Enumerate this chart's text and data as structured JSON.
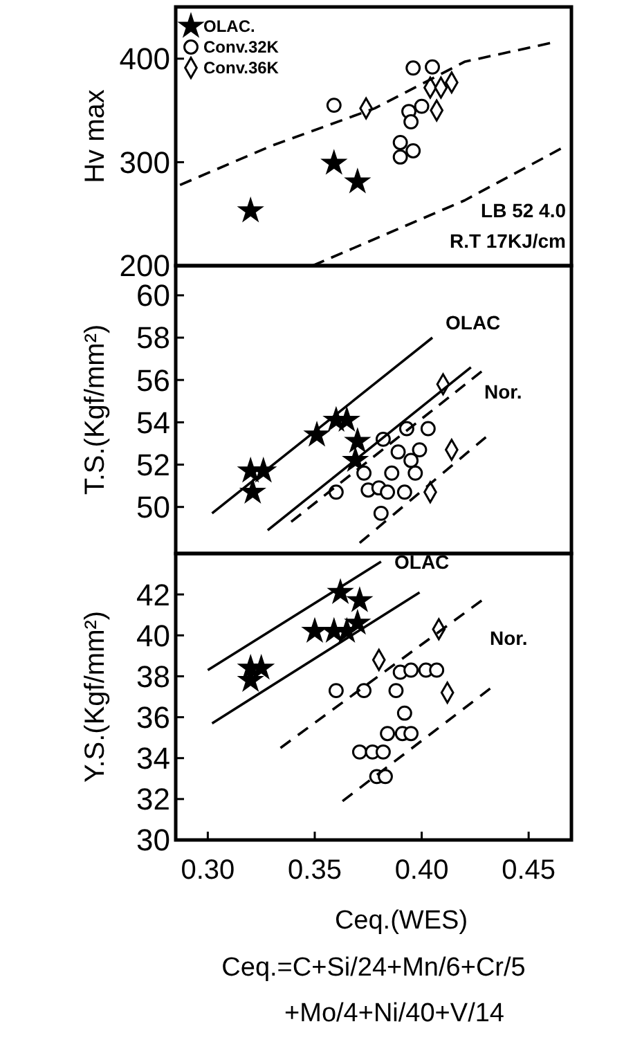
{
  "chart_data": [
    {
      "type": "scatter",
      "ylabel": "Hv max",
      "xlim": [
        0.285,
        0.47
      ],
      "ylim": [
        200,
        450
      ],
      "yticks": [
        200,
        300,
        400
      ],
      "tick_labels": "y",
      "legend": "top left",
      "annotations": [
        "LB 52 4.0",
        "R.T 17KJ/cm"
      ],
      "series": [
        {
          "name": "OLAC.",
          "color": "#000000",
          "marker": "star",
          "x": [
            0.32,
            0.359,
            0.37
          ],
          "values": [
            253,
            299,
            281
          ]
        },
        {
          "name": "Conv.32K",
          "color": "#000000",
          "marker": "circle",
          "x": [
            0.359,
            0.396,
            0.405,
            0.394,
            0.4,
            0.395,
            0.39,
            0.396,
            0.39
          ],
          "values": [
            355,
            391,
            392,
            349,
            354,
            339,
            319,
            311,
            305
          ]
        },
        {
          "name": "Conv.36K",
          "color": "#000000",
          "marker": "diamond",
          "x": [
            0.374,
            0.404,
            0.409,
            0.414,
            0.407
          ],
          "values": [
            352,
            372,
            372,
            377,
            350
          ]
        },
        {
          "type": "line",
          "color": "#000000",
          "line_style": "dashed",
          "x": [
            0.287,
            0.33,
            0.378,
            0.42,
            0.46
          ],
          "values": [
            278,
            316,
            352,
            397,
            415
          ]
        },
        {
          "type": "line",
          "color": "#000000",
          "line_style": "dashed",
          "x": [
            0.349,
            0.42,
            0.465
          ],
          "values": [
            200,
            263,
            313
          ]
        }
      ]
    },
    {
      "type": "scatter",
      "ylabel": "T.S.(Kgf/mm²)",
      "xlim": [
        0.285,
        0.47
      ],
      "ylim": [
        47.8,
        61.4
      ],
      "yticks": [
        50,
        52,
        54,
        56,
        58,
        60
      ],
      "tick_labels": "y",
      "annotations": [
        "OLAC",
        "Nor."
      ],
      "series": [
        {
          "color": "#000000",
          "marker": "star",
          "x": [
            0.32,
            0.326,
            0.321,
            0.351,
            0.36,
            0.365,
            0.37,
            0.369
          ],
          "values": [
            51.7,
            51.7,
            50.7,
            53.4,
            54.1,
            54.1,
            53.1,
            52.2
          ]
        },
        {
          "color": "#000000",
          "marker": "circle",
          "x": [
            0.36,
            0.373,
            0.375,
            0.382,
            0.393,
            0.403,
            0.389,
            0.399,
            0.395,
            0.386,
            0.397,
            0.38,
            0.384,
            0.392,
            0.381
          ],
          "values": [
            50.7,
            51.6,
            50.8,
            53.2,
            53.7,
            53.7,
            52.6,
            52.7,
            52.2,
            51.6,
            51.6,
            50.9,
            50.7,
            50.7,
            49.7
          ]
        },
        {
          "color": "#000000",
          "marker": "diamond",
          "x": [
            0.41,
            0.414,
            0.404
          ],
          "values": [
            55.8,
            52.7,
            50.7
          ]
        },
        {
          "type": "line",
          "color": "#000000",
          "line_style": "solid",
          "x": [
            0.302,
            0.405
          ],
          "values": [
            49.7,
            58.0
          ]
        },
        {
          "type": "line",
          "color": "#000000",
          "line_style": "solid",
          "x": [
            0.328,
            0.423
          ],
          "values": [
            48.9,
            56.6
          ]
        },
        {
          "type": "line",
          "color": "#000000",
          "line_style": "dashed",
          "x": [
            0.339,
            0.428
          ],
          "values": [
            49.3,
            56.4
          ]
        },
        {
          "type": "line",
          "color": "#000000",
          "line_style": "dashed",
          "x": [
            0.371,
            0.43
          ],
          "values": [
            48.3,
            53.3
          ]
        }
      ]
    },
    {
      "type": "scatter",
      "ylabel": "Y.S.(Kgf/mm²)",
      "xlabel": "Ceq.(WES)",
      "xlim": [
        0.285,
        0.47
      ],
      "xticks": [
        {
          "value": 0.3,
          "label": "0.30"
        },
        {
          "value": 0.35,
          "label": "0.35"
        },
        {
          "value": 0.4,
          "label": "0.40"
        },
        {
          "value": 0.45,
          "label": "0.45"
        }
      ],
      "ylim": [
        30,
        44
      ],
      "yticks": [
        30,
        32,
        34,
        36,
        38,
        40,
        42
      ],
      "annotations": [
        "OLAC",
        "Nor.",
        "Ceq.=C+Si/24+Mn/6+Cr/5",
        "+Mo/4+Ni/40+V/14"
      ],
      "series": [
        {
          "color": "#000000",
          "marker": "star",
          "x": [
            0.362,
            0.371,
            0.35,
            0.359,
            0.365,
            0.37,
            0.32,
            0.32,
            0.325
          ],
          "values": [
            42.1,
            41.7,
            40.2,
            40.2,
            40.2,
            40.6,
            38.4,
            37.8,
            38.4
          ]
        },
        {
          "color": "#000000",
          "marker": "circle",
          "x": [
            0.36,
            0.373,
            0.388,
            0.39,
            0.395,
            0.402,
            0.407,
            0.392,
            0.384,
            0.391,
            0.395,
            0.371,
            0.377,
            0.382,
            0.379,
            0.383
          ],
          "values": [
            37.3,
            37.3,
            37.3,
            38.2,
            38.3,
            38.3,
            38.3,
            36.2,
            35.2,
            35.2,
            35.2,
            34.3,
            34.3,
            34.3,
            33.1,
            33.1
          ]
        },
        {
          "color": "#000000",
          "marker": "diamond",
          "x": [
            0.38,
            0.408,
            0.412
          ],
          "values": [
            38.8,
            40.3,
            37.2
          ]
        },
        {
          "type": "line",
          "color": "#000000",
          "line_style": "solid",
          "x": [
            0.3,
            0.381
          ],
          "values": [
            38.3,
            43.6
          ]
        },
        {
          "type": "line",
          "color": "#000000",
          "line_style": "solid",
          "x": [
            0.302,
            0.399
          ],
          "values": [
            35.7,
            42.1
          ]
        },
        {
          "type": "line",
          "color": "#000000",
          "line_style": "dashed",
          "x": [
            0.334,
            0.428
          ],
          "values": [
            34.5,
            41.7
          ]
        },
        {
          "type": "line",
          "color": "#000000",
          "line_style": "dashed",
          "x": [
            0.363,
            0.432
          ],
          "values": [
            31.9,
            37.4
          ]
        }
      ]
    }
  ]
}
